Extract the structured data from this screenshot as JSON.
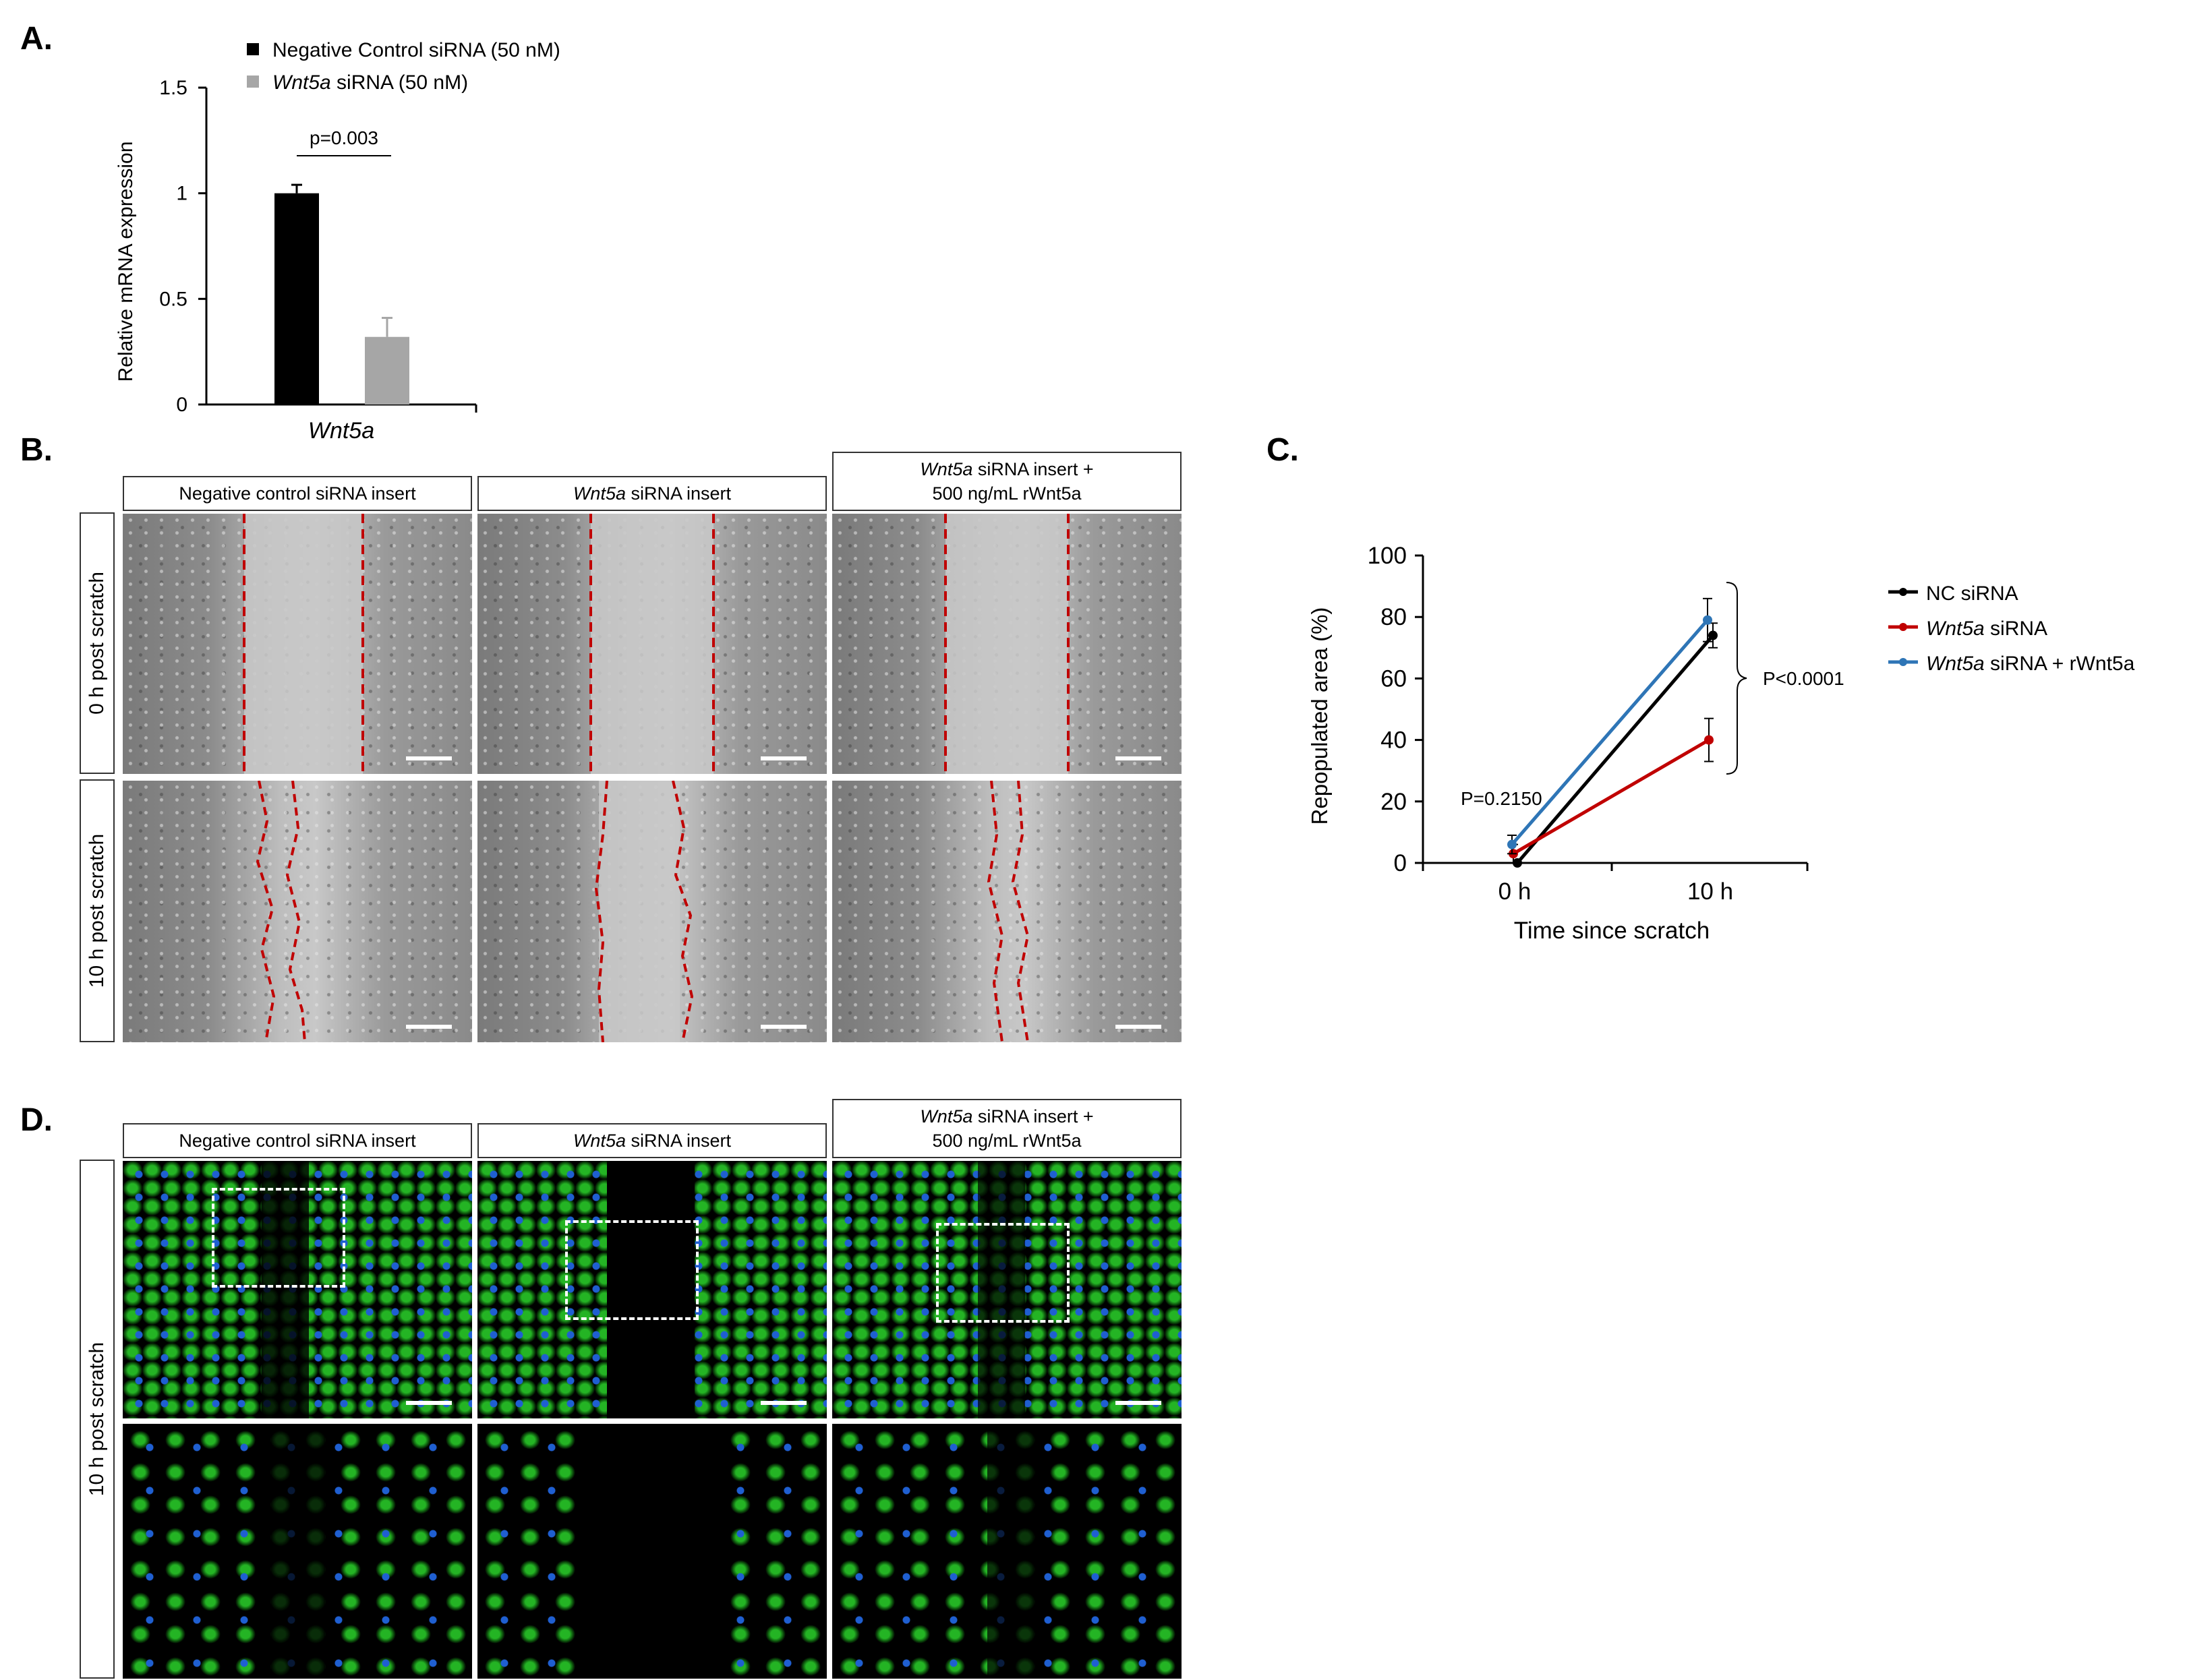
{
  "panels": {
    "a": "A.",
    "b": "B.",
    "c": "C.",
    "d": "D."
  },
  "chart_a": {
    "legend": [
      {
        "name": "Negative Control siRNA (50 nM)",
        "color": "#000000"
      },
      {
        "name_italic": "Wnt5a",
        "name_rest": " siRNA (50 nM)",
        "color": "#a6a6a6"
      }
    ],
    "ylabel": "Relative mRNA expression",
    "xlabel": "Wnt5a",
    "yticks": [
      "0",
      "0.5",
      "1",
      "1.5"
    ],
    "pvalue": "p=0.003"
  },
  "chart_data": [
    {
      "type": "bar",
      "categories": [
        "Wnt5a"
      ],
      "series": [
        {
          "name": "Negative Control siRNA (50 nM)",
          "values": [
            1.0
          ],
          "error": [
            0.04
          ],
          "color": "#000000"
        },
        {
          "name": "Wnt5a siRNA (50 nM)",
          "values": [
            0.32
          ],
          "error": [
            0.09
          ],
          "color": "#a6a6a6"
        }
      ],
      "ylabel": "Relative mRNA expression",
      "ylim": [
        0,
        1.5
      ],
      "annotation": "p=0.003"
    },
    {
      "type": "line",
      "x": [
        "0 h",
        "10 h"
      ],
      "series": [
        {
          "name": "NC siRNA",
          "values": [
            0,
            74
          ],
          "error": [
            0,
            4
          ],
          "color": "#000000"
        },
        {
          "name": "Wnt5a siRNA",
          "values": [
            3,
            40
          ],
          "error": [
            3,
            7
          ],
          "color": "#c00000"
        },
        {
          "name": "Wnt5a siRNA + rWnt5a",
          "values": [
            6,
            79
          ],
          "error": [
            3,
            7
          ],
          "color": "#2e75b6"
        }
      ],
      "xlabel": "Time since scratch",
      "ylabel": "Repopulated area (%)",
      "ylim": [
        0,
        100
      ],
      "yticks": [
        0,
        20,
        40,
        60,
        80,
        100
      ],
      "annotations": [
        "P=0.2150",
        "P<0.0001"
      ]
    }
  ],
  "chart_c": {
    "ylabel": "Repopulated area (%)",
    "xlabel": "Time since scratch",
    "xticks": [
      "0 h",
      "10 h"
    ],
    "yticks": [
      "0",
      "20",
      "40",
      "60",
      "80",
      "100"
    ],
    "p1": "P=0.2150",
    "p2": "P<0.0001",
    "legend": [
      {
        "italic": "",
        "rest": "NC siRNA",
        "color": "#000000"
      },
      {
        "italic": "Wnt5a",
        "rest": " siRNA",
        "color": "#c00000"
      },
      {
        "italic": "Wnt5a",
        "rest": " siRNA + rWnt5a",
        "color": "#2e75b6"
      }
    ]
  },
  "panel_b": {
    "col1": "Negative control siRNA insert",
    "col2_italic": "Wnt5a",
    "col2_rest": " siRNA insert",
    "col3_italic": "Wnt5a",
    "col3_rest": " siRNA insert +",
    "col3_line2": "500 ng/mL rWnt5a",
    "row1": "0 h post scratch",
    "row2": "10 h post scratch"
  },
  "panel_d": {
    "col1": "Negative control siRNA insert",
    "col2_italic": "Wnt5a",
    "col2_rest": " siRNA insert",
    "col3_italic": "Wnt5a",
    "col3_rest": " siRNA insert +",
    "col3_line2": "500 ng/mL rWnt5a",
    "row": "10 h post scratch"
  },
  "colors": {
    "dash_red": "#c00000",
    "green": "#22b022",
    "blue": "#1f5fd1"
  }
}
